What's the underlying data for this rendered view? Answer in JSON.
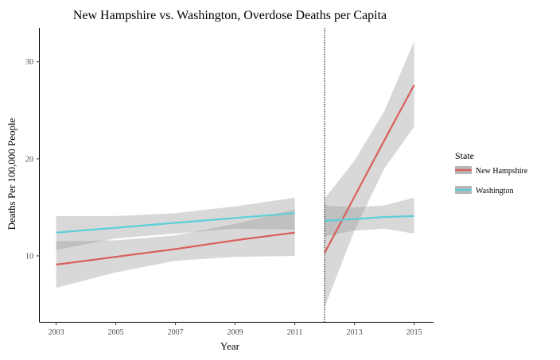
{
  "chart_data": {
    "type": "line",
    "title": "New Hampshire vs. Washington, Overdose Deaths per Capita",
    "xlabel": "Year",
    "ylabel": "Deaths Per 100,000 People",
    "xlim": [
      2002.45,
      2015.65
    ],
    "ylim": [
      3.2,
      33.5
    ],
    "xticks": [
      2003,
      2005,
      2007,
      2009,
      2011,
      2013,
      2015
    ],
    "yticks": [
      10,
      20,
      30
    ],
    "vline_x": 2012,
    "grid": false,
    "legend": {
      "title": "State",
      "placement": "right"
    },
    "series": [
      {
        "name": "New Hampshire",
        "color": "#d9605a",
        "segments": [
          {
            "x": [
              2003,
              2005,
              2007,
              2009,
              2011
            ],
            "y": [
              9.1,
              9.9,
              10.7,
              11.6,
              12.4
            ],
            "lower": [
              6.7,
              8.3,
              9.5,
              9.9,
              10.0
            ],
            "upper": [
              11.5,
              11.6,
              12.1,
              13.3,
              14.8
            ]
          },
          {
            "x": [
              2012,
              2013,
              2014,
              2015
            ],
            "y": [
              10.3,
              16.1,
              21.9,
              27.6
            ],
            "lower": [
              4.7,
              12.6,
              19.0,
              23.3
            ],
            "upper": [
              15.9,
              19.8,
              24.9,
              32.1
            ]
          }
        ]
      },
      {
        "name": "Washington",
        "color": "#5bcfd9",
        "segments": [
          {
            "x": [
              2003,
              2005,
              2007,
              2009,
              2011
            ],
            "y": [
              12.4,
              12.9,
              13.4,
              13.9,
              14.4
            ],
            "lower": [
              10.6,
              11.8,
              12.3,
              12.8,
              12.7
            ],
            "upper": [
              14.1,
              14.1,
              14.4,
              15.1,
              16.0
            ]
          },
          {
            "x": [
              2012,
              2013,
              2014,
              2015
            ],
            "y": [
              13.6,
              13.8,
              14.0,
              14.1
            ],
            "lower": [
              12.0,
              12.6,
              12.8,
              12.3
            ],
            "upper": [
              15.2,
              15.0,
              15.2,
              16.0
            ]
          }
        ]
      }
    ]
  }
}
